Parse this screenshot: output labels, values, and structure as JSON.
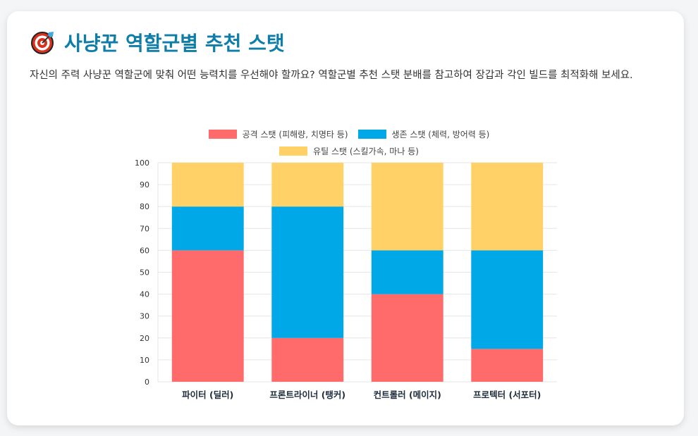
{
  "header": {
    "title": "사냥꾼 역할군별 추천 스탯",
    "icon": "target-icon",
    "description": "자신의 주력 사냥꾼 역할군에 맞춰 어떤 능력치를 우선해야 할까요? 역할군별 추천 스탯 분배를 참고하여 장갑과 각인 빌드를 최적화해 보세요."
  },
  "colors": {
    "title": "#0e7ea8",
    "attack": "#ff6b6b",
    "survival": "#00a8e8",
    "utility": "#ffd166"
  },
  "chart_data": {
    "type": "bar",
    "stacked": true,
    "title": "",
    "xlabel": "",
    "ylabel": "",
    "ylim": [
      0,
      100
    ],
    "yticks": [
      0,
      10,
      20,
      30,
      40,
      50,
      60,
      70,
      80,
      90,
      100
    ],
    "grid": true,
    "legend_position": "top",
    "categories": [
      "파이터 (딜러)",
      "프론트라이너 (탱커)",
      "컨트롤러 (메이지)",
      "프로텍터 (서포터)"
    ],
    "series": [
      {
        "name": "공격 스탯 (피해량, 치명타 등)",
        "color": "#ff6b6b",
        "values": [
          60,
          20,
          40,
          15
        ]
      },
      {
        "name": "생존 스탯 (체력, 방어력 등)",
        "color": "#00a8e8",
        "values": [
          20,
          60,
          20,
          45
        ]
      },
      {
        "name": "유틸 스탯 (스킬가속, 마나 등)",
        "color": "#ffd166",
        "values": [
          20,
          20,
          40,
          40
        ]
      }
    ]
  }
}
